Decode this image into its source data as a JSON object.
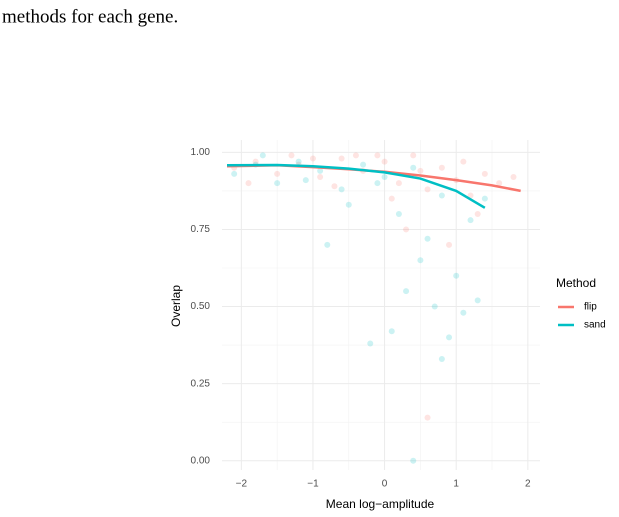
{
  "caption": "methods for each gene.",
  "chart_data": {
    "type": "scatter",
    "x_label": "Mean log−amplitude",
    "y_label": "Overlap",
    "legend_title": "Method",
    "xlim": [
      -2.27,
      2.17
    ],
    "ylim": [
      -0.03,
      1.04
    ],
    "xticks": [
      {
        "value": -2,
        "label": "−2"
      },
      {
        "value": -1,
        "label": "−1"
      },
      0,
      1,
      2
    ],
    "yticks": [
      {
        "value": 0,
        "label": "0.00"
      },
      {
        "value": 0.25,
        "label": "0.25"
      },
      {
        "value": 0.5,
        "label": "0.50"
      },
      {
        "value": 0.75,
        "label": "0.75"
      },
      {
        "value": 1,
        "label": "1.00"
      }
    ],
    "x_minor": [
      -1.5,
      -0.5,
      0.5,
      1.5
    ],
    "y_minor": [
      0.125,
      0.375,
      0.625,
      0.875
    ],
    "grid": true,
    "series": [
      {
        "name": "flip",
        "color": "#F8766D",
        "x": [
          -2.1,
          -1.8,
          -1.5,
          -1.2,
          -0.9,
          -0.6,
          -0.3,
          0,
          0.2,
          0.4,
          0.6,
          0.8,
          1.0,
          1.2,
          1.4,
          1.6,
          1.8,
          -1.9,
          -1.3,
          -0.7,
          -0.1,
          0.5,
          1.1,
          0.3,
          0.9,
          0.6,
          -0.4,
          1.3,
          0.1,
          -1.0
        ],
        "values": [
          0.95,
          0.97,
          0.93,
          0.96,
          0.92,
          0.98,
          0.94,
          0.97,
          0.9,
          0.99,
          0.88,
          0.95,
          0.91,
          0.86,
          0.93,
          0.9,
          0.92,
          0.9,
          0.99,
          0.89,
          0.99,
          0.94,
          0.97,
          0.75,
          0.7,
          0.14,
          0.99,
          0.8,
          0.85,
          0.98
        ],
        "trend_x": [
          -2.2,
          -1.5,
          -1,
          -0.5,
          0,
          0.5,
          1,
          1.5,
          1.9
        ],
        "trend_values": [
          0.955,
          0.958,
          0.952,
          0.945,
          0.937,
          0.925,
          0.91,
          0.893,
          0.875
        ]
      },
      {
        "name": "sand",
        "color": "#00BFC4",
        "x": [
          -2.1,
          -1.8,
          -1.5,
          -1.2,
          -0.9,
          -0.6,
          -0.3,
          0,
          0.2,
          0.4,
          0.6,
          0.8,
          1.0,
          1.2,
          1.4,
          -1.7,
          -1.1,
          -0.5,
          0.1,
          0.7,
          1.1,
          -0.8,
          -0.2,
          0.3,
          0.5,
          0.9,
          1.3,
          0.4,
          0.8,
          -0.1
        ],
        "values": [
          0.93,
          0.96,
          0.9,
          0.97,
          0.94,
          0.88,
          0.96,
          0.92,
          0.8,
          0.95,
          0.72,
          0.86,
          0.6,
          0.78,
          0.85,
          0.99,
          0.91,
          0.83,
          0.42,
          0.5,
          0.48,
          0.7,
          0.38,
          0.55,
          0.65,
          0.4,
          0.52,
          0.0,
          0.33,
          0.9
        ],
        "trend_x": [
          -2.2,
          -1.5,
          -1,
          -0.5,
          0,
          0.5,
          1,
          1.4
        ],
        "trend_values": [
          0.958,
          0.959,
          0.955,
          0.947,
          0.935,
          0.915,
          0.875,
          0.82
        ]
      }
    ]
  }
}
